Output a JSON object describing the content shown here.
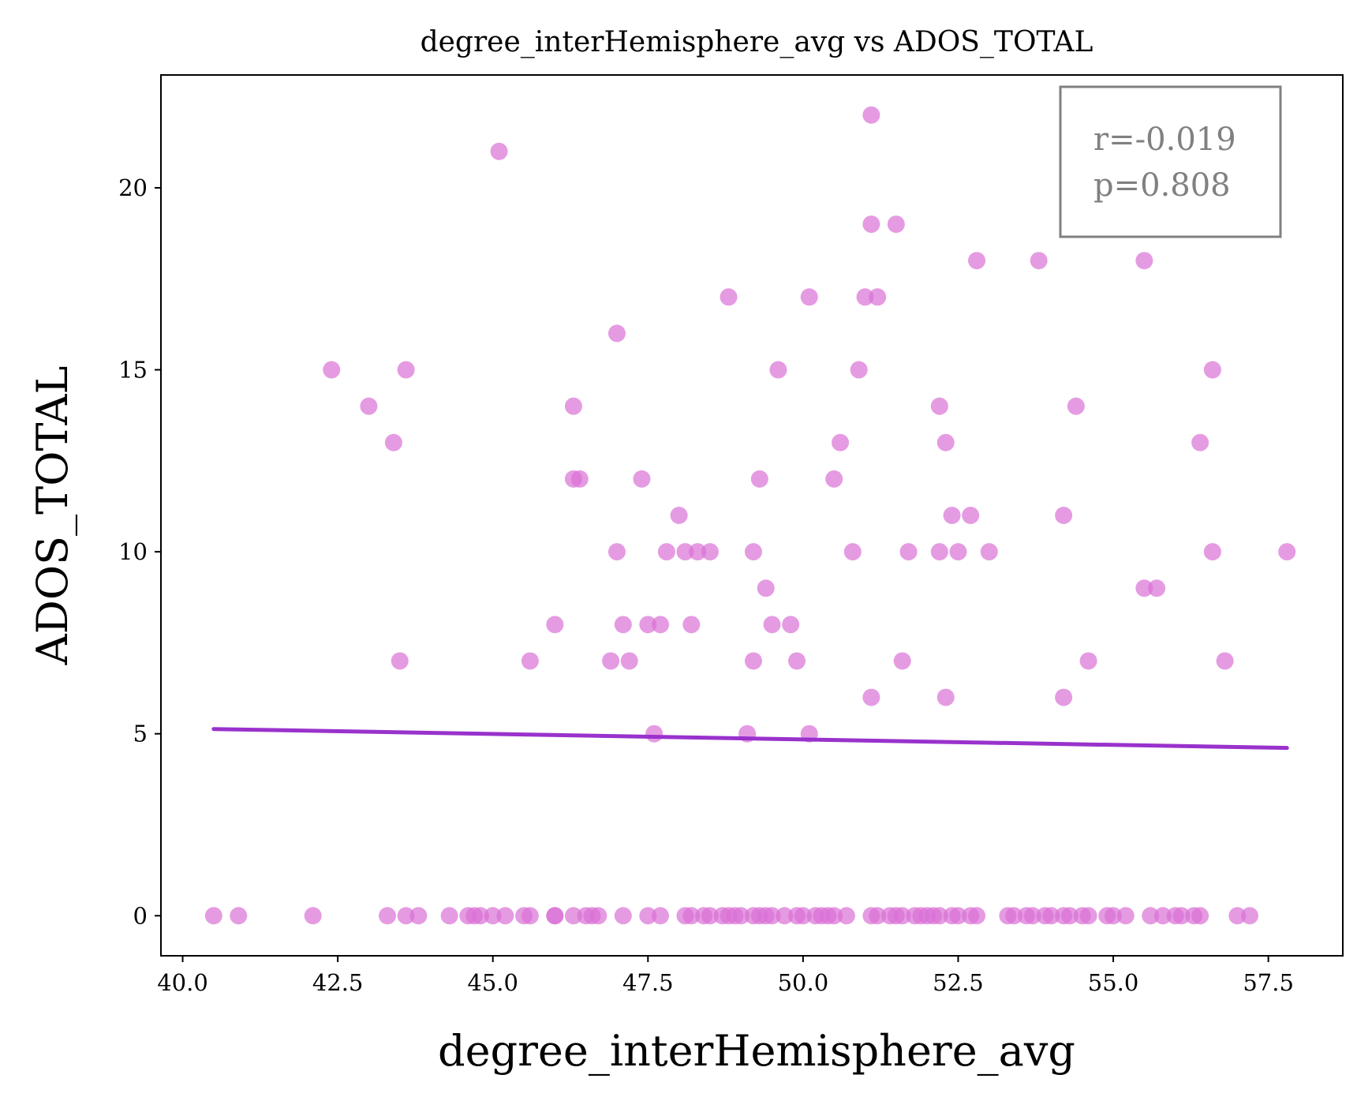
{
  "chart_data": {
    "type": "scatter",
    "title": "degree_interHemisphere_avg vs ADOS_TOTAL",
    "xlabel": "degree_interHemisphere_avg",
    "ylabel": "ADOS_TOTAL",
    "xlim": [
      39.65,
      58.7
    ],
    "ylim": [
      -1.1,
      23.1
    ],
    "xticks": [
      "40.0",
      "42.5",
      "45.0",
      "47.5",
      "50.0",
      "52.5",
      "55.0",
      "57.5"
    ],
    "yticks": [
      "0",
      "5",
      "10",
      "15",
      "20"
    ],
    "grid": false,
    "annotation": [
      "r=-0.019",
      "p=0.808"
    ],
    "annotation_position": "top-right",
    "colors": {
      "points": "#da70d6",
      "fit_line": "#9932cc",
      "annotation": "#808080"
    },
    "points": [
      [
        40.5,
        0
      ],
      [
        40.9,
        0
      ],
      [
        42.1,
        0
      ],
      [
        43.3,
        0
      ],
      [
        43.6,
        0
      ],
      [
        43.8,
        0
      ],
      [
        44.3,
        0
      ],
      [
        44.6,
        0
      ],
      [
        44.7,
        0
      ],
      [
        44.8,
        0
      ],
      [
        45.0,
        0
      ],
      [
        45.2,
        0
      ],
      [
        45.5,
        0
      ],
      [
        45.6,
        0
      ],
      [
        46.0,
        0
      ],
      [
        46.0,
        0
      ],
      [
        46.3,
        0
      ],
      [
        46.5,
        0
      ],
      [
        46.6,
        0
      ],
      [
        46.7,
        0
      ],
      [
        47.1,
        0
      ],
      [
        47.5,
        0
      ],
      [
        47.7,
        0
      ],
      [
        48.1,
        0
      ],
      [
        48.2,
        0
      ],
      [
        48.4,
        0
      ],
      [
        48.5,
        0
      ],
      [
        48.7,
        0
      ],
      [
        48.8,
        0
      ],
      [
        48.9,
        0
      ],
      [
        49.0,
        0
      ],
      [
        49.2,
        0
      ],
      [
        49.3,
        0
      ],
      [
        49.4,
        0
      ],
      [
        49.5,
        0
      ],
      [
        49.7,
        0
      ],
      [
        49.9,
        0
      ],
      [
        50.0,
        0
      ],
      [
        50.2,
        0
      ],
      [
        50.3,
        0
      ],
      [
        50.4,
        0
      ],
      [
        50.5,
        0
      ],
      [
        50.7,
        0
      ],
      [
        51.1,
        0
      ],
      [
        51.2,
        0
      ],
      [
        51.4,
        0
      ],
      [
        51.5,
        0
      ],
      [
        51.6,
        0
      ],
      [
        51.8,
        0
      ],
      [
        51.9,
        0
      ],
      [
        52.0,
        0
      ],
      [
        52.1,
        0
      ],
      [
        52.2,
        0
      ],
      [
        52.4,
        0
      ],
      [
        52.5,
        0
      ],
      [
        52.7,
        0
      ],
      [
        52.8,
        0
      ],
      [
        53.3,
        0
      ],
      [
        53.4,
        0
      ],
      [
        53.6,
        0
      ],
      [
        53.7,
        0
      ],
      [
        53.9,
        0
      ],
      [
        54.0,
        0
      ],
      [
        54.2,
        0
      ],
      [
        54.3,
        0
      ],
      [
        54.5,
        0
      ],
      [
        54.6,
        0
      ],
      [
        54.9,
        0
      ],
      [
        55.0,
        0
      ],
      [
        55.2,
        0
      ],
      [
        55.6,
        0
      ],
      [
        55.8,
        0
      ],
      [
        56.0,
        0
      ],
      [
        56.1,
        0
      ],
      [
        56.3,
        0
      ],
      [
        56.4,
        0
      ],
      [
        57.0,
        0
      ],
      [
        57.2,
        0
      ],
      [
        42.4,
        15
      ],
      [
        43.0,
        14
      ],
      [
        43.4,
        13
      ],
      [
        43.6,
        15
      ],
      [
        43.5,
        7
      ],
      [
        45.1,
        21
      ],
      [
        45.6,
        7
      ],
      [
        46.0,
        8
      ],
      [
        46.3,
        14
      ],
      [
        46.3,
        12
      ],
      [
        46.4,
        12
      ],
      [
        46.9,
        7
      ],
      [
        47.0,
        10
      ],
      [
        47.0,
        16
      ],
      [
        47.1,
        8
      ],
      [
        47.2,
        7
      ],
      [
        47.4,
        12
      ],
      [
        47.5,
        8
      ],
      [
        47.7,
        8
      ],
      [
        47.6,
        5
      ],
      [
        47.8,
        10
      ],
      [
        48.0,
        11
      ],
      [
        48.1,
        10
      ],
      [
        48.3,
        10
      ],
      [
        48.2,
        8
      ],
      [
        48.5,
        10
      ],
      [
        48.8,
        17
      ],
      [
        49.1,
        5
      ],
      [
        49.2,
        7
      ],
      [
        49.2,
        10
      ],
      [
        49.3,
        12
      ],
      [
        49.4,
        9
      ],
      [
        49.5,
        8
      ],
      [
        49.6,
        15
      ],
      [
        49.8,
        8
      ],
      [
        49.9,
        7
      ],
      [
        50.1,
        17
      ],
      [
        50.1,
        5
      ],
      [
        50.5,
        12
      ],
      [
        50.6,
        13
      ],
      [
        50.8,
        10
      ],
      [
        50.9,
        15
      ],
      [
        51.0,
        17
      ],
      [
        51.1,
        22
      ],
      [
        51.1,
        6
      ],
      [
        51.1,
        19
      ],
      [
        51.2,
        17
      ],
      [
        51.5,
        19
      ],
      [
        51.6,
        7
      ],
      [
        51.7,
        10
      ],
      [
        52.2,
        14
      ],
      [
        52.2,
        10
      ],
      [
        52.3,
        13
      ],
      [
        52.3,
        6
      ],
      [
        52.4,
        11
      ],
      [
        52.5,
        10
      ],
      [
        52.7,
        11
      ],
      [
        52.8,
        18
      ],
      [
        53.0,
        10
      ],
      [
        53.8,
        18
      ],
      [
        54.2,
        11
      ],
      [
        54.2,
        6
      ],
      [
        54.4,
        14
      ],
      [
        54.6,
        7
      ],
      [
        55.5,
        18
      ],
      [
        55.5,
        9
      ],
      [
        55.7,
        9
      ],
      [
        56.4,
        13
      ],
      [
        56.6,
        15
      ],
      [
        56.6,
        10
      ],
      [
        56.8,
        7
      ],
      [
        57.8,
        10
      ]
    ],
    "fit_line": {
      "x": [
        40.5,
        57.8
      ],
      "y": [
        5.13,
        4.61
      ]
    }
  }
}
